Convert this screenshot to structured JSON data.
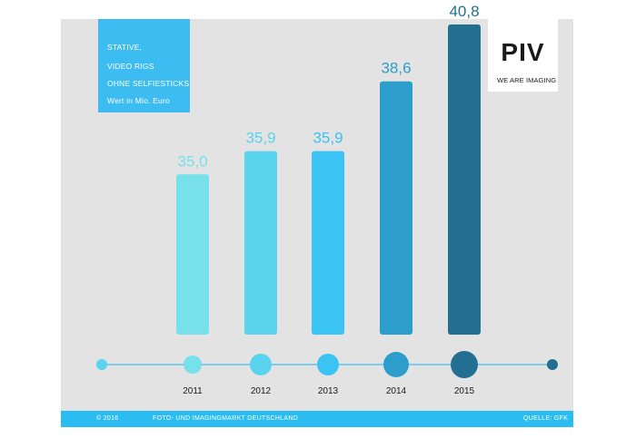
{
  "title_box": {
    "lines": [
      "STATIVE,",
      "VIDEO RIGS",
      "OHNE SELFIESTICKS"
    ],
    "unit": "Wert in Mio. Euro"
  },
  "logo": {
    "mark": "PIV",
    "tagline": "WE ARE IMAGING"
  },
  "colors": {
    "panel": "#e3e3e3",
    "accent": "#3dbcf1",
    "footer": "#2bbdf2",
    "timeline": "#58c6f2"
  },
  "chart_data": {
    "type": "bar",
    "categories": [
      "2011",
      "2012",
      "2013",
      "2014",
      "2015"
    ],
    "values": [
      35.0,
      35.9,
      35.9,
      38.6,
      40.8
    ],
    "value_labels": [
      "35,0",
      "35,9",
      "35,9",
      "38,6",
      "40,8"
    ],
    "bar_colors": [
      "#76e1ea",
      "#5ad3ee",
      "#3ac3f3",
      "#2d9dcb",
      "#236f91"
    ],
    "dot_colors": [
      "#76e1ea",
      "#5ad3ee",
      "#3ac3f3",
      "#2d9dcb",
      "#236f91"
    ],
    "timeline_end_colors": [
      "#5ad3ee",
      "#236f91"
    ],
    "title": "",
    "xlabel": "",
    "ylabel": "",
    "grid": false,
    "legend": "none"
  },
  "footer": {
    "copyright": "© 2016",
    "market": "FOTO- UND IMAGINGMARKT DEUTSCHLAND",
    "source": "QUELLE: GFK"
  }
}
